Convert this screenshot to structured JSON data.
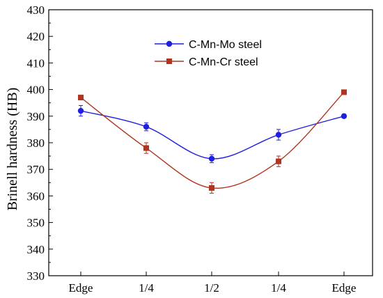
{
  "chart_data": {
    "type": "line",
    "title": "",
    "xlabel": "",
    "ylabel": "Brinell hardness (HB)",
    "categories": [
      "Edge",
      "1/4",
      "1/2",
      "1/4",
      "Edge"
    ],
    "ylim": [
      330,
      430
    ],
    "yticks": [
      330,
      340,
      350,
      360,
      370,
      380,
      390,
      400,
      410,
      420,
      430
    ],
    "grid": false,
    "legend_position": "top-center",
    "series": [
      {
        "name": "C-Mn-Mo steel",
        "marker": "circle",
        "color": "#1f1fe0",
        "values": [
          392,
          386,
          374,
          383,
          390
        ],
        "errors": [
          2,
          1.5,
          1.5,
          2,
          0.7
        ]
      },
      {
        "name": "C-Mn-Cr steel",
        "marker": "square",
        "color": "#b0341e",
        "values": [
          397,
          378,
          363,
          373,
          399
        ],
        "errors": [
          0.7,
          2,
          2,
          2,
          0.7
        ]
      }
    ]
  }
}
